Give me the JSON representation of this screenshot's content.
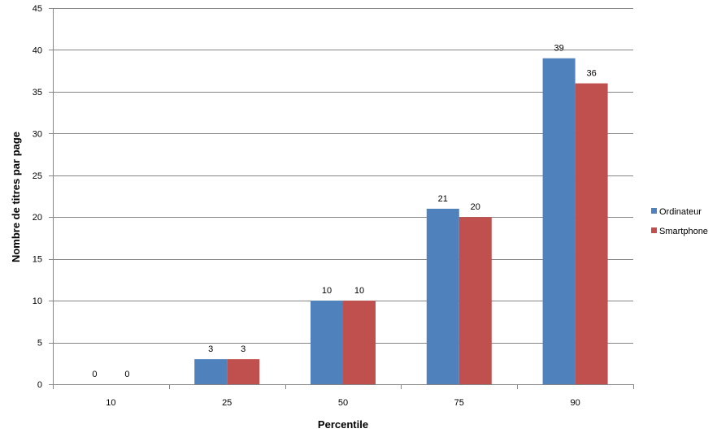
{
  "chart_data": {
    "type": "bar",
    "categories": [
      "10",
      "25",
      "50",
      "75",
      "90"
    ],
    "series": [
      {
        "name": "Ordinateur",
        "color": "#4F81BD",
        "values": [
          0,
          3,
          10,
          21,
          39
        ]
      },
      {
        "name": "Smartphone",
        "color": "#C0504D",
        "values": [
          0,
          3,
          10,
          20,
          36
        ]
      }
    ],
    "title": "",
    "xlabel": "Percentile",
    "ylabel": "Nombre de titres par page",
    "ylim": [
      0,
      45
    ],
    "ytick_step": 5,
    "grid": true,
    "legend_position": "right"
  }
}
